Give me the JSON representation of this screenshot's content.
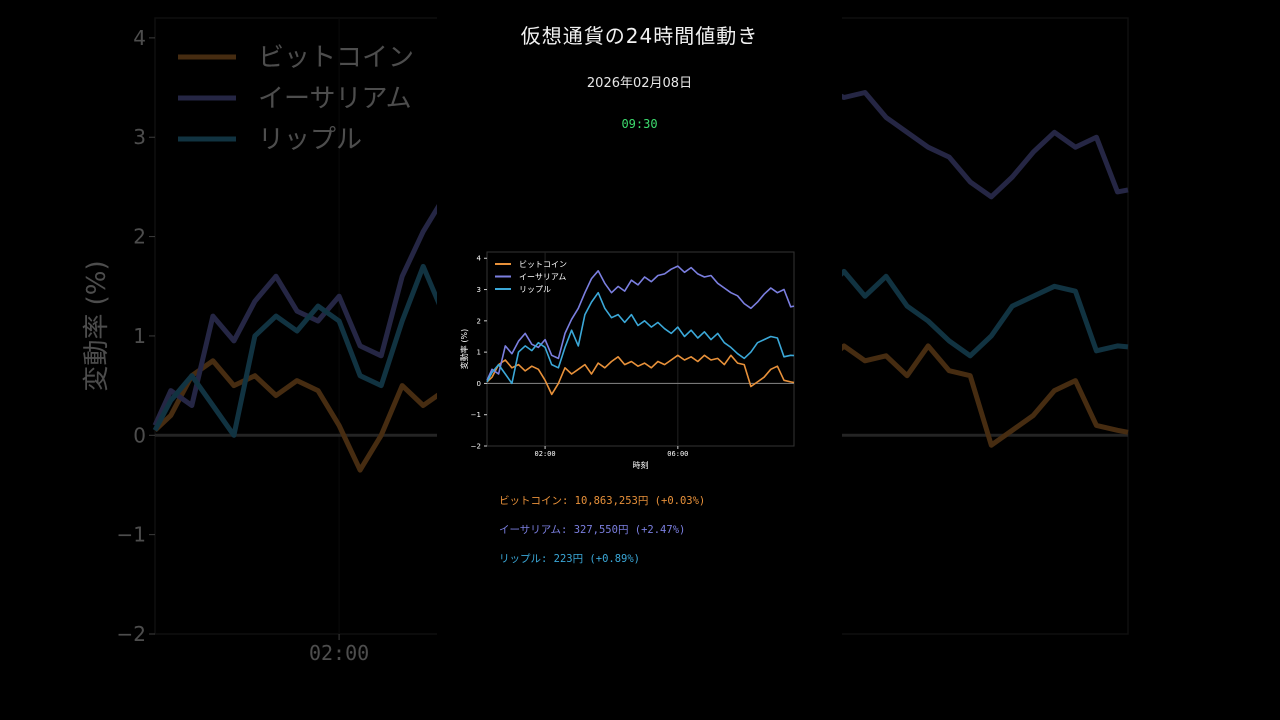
{
  "title": "仮想通貨の24時間値動き",
  "date": "2026年02月08日",
  "time": "09:30",
  "colors": {
    "background": "#000000",
    "bitcoin": "#e8913a",
    "ethereum": "#7b7fe0",
    "ripple": "#3ba8d8",
    "time": "#3ddc6e"
  },
  "stats": [
    {
      "text": "ビットコイン: 10,863,253円 (+0.03%)",
      "color": "#e8913a"
    },
    {
      "text": "イーサリアム: 327,550円 (+2.47%)",
      "color": "#7b7fe0"
    },
    {
      "text": "リップル: 223円 (+0.89%)",
      "color": "#3ba8d8"
    }
  ],
  "chart_data": {
    "type": "line",
    "xlabel": "時刻",
    "ylabel": "変動率 (%)",
    "ylim": [
      -2,
      4.2
    ],
    "yticks": [
      -2,
      -1,
      0,
      1,
      2,
      3,
      4
    ],
    "xlim": [
      0.25,
      9.5
    ],
    "xticks": [
      {
        "x": 2,
        "label": "02:00"
      },
      {
        "x": 6,
        "label": "06:00"
      }
    ],
    "legend": "top-left",
    "series": [
      {
        "name": "ビットコイン",
        "color": "#e8913a",
        "x": [
          0.25,
          0.4,
          0.6,
          0.8,
          1,
          1.2,
          1.4,
          1.6,
          1.8,
          2,
          2.2,
          2.4,
          2.6,
          2.8,
          3,
          3.2,
          3.4,
          3.6,
          3.8,
          4,
          4.2,
          4.4,
          4.6,
          4.8,
          5,
          5.2,
          5.4,
          5.6,
          5.8,
          6,
          6.2,
          6.4,
          6.6,
          6.8,
          7,
          7.2,
          7.4,
          7.6,
          7.8,
          8,
          8.2,
          8.4,
          8.6,
          8.8,
          9,
          9.2,
          9.4,
          9.5
        ],
        "values": [
          0.05,
          0.2,
          0.6,
          0.75,
          0.5,
          0.6,
          0.4,
          0.55,
          0.45,
          0.1,
          -0.35,
          0.0,
          0.5,
          0.3,
          0.45,
          0.6,
          0.3,
          0.65,
          0.5,
          0.7,
          0.85,
          0.6,
          0.7,
          0.55,
          0.65,
          0.5,
          0.7,
          0.6,
          0.75,
          0.9,
          0.75,
          0.85,
          0.7,
          0.9,
          0.75,
          0.8,
          0.6,
          0.9,
          0.65,
          0.6,
          -0.1,
          0.05,
          0.2,
          0.45,
          0.55,
          0.1,
          0.05,
          0.03
        ]
      },
      {
        "name": "イーサリアム",
        "color": "#7b7fe0",
        "x": [
          0.25,
          0.4,
          0.6,
          0.8,
          1,
          1.2,
          1.4,
          1.6,
          1.8,
          2,
          2.2,
          2.4,
          2.6,
          2.8,
          3,
          3.2,
          3.4,
          3.6,
          3.8,
          4,
          4.2,
          4.4,
          4.6,
          4.8,
          5,
          5.2,
          5.4,
          5.6,
          5.8,
          6,
          6.2,
          6.4,
          6.6,
          6.8,
          7,
          7.2,
          7.4,
          7.6,
          7.8,
          8,
          8.2,
          8.4,
          8.6,
          8.8,
          9,
          9.2,
          9.4,
          9.5
        ],
        "values": [
          0.1,
          0.45,
          0.3,
          1.2,
          0.95,
          1.35,
          1.6,
          1.25,
          1.15,
          1.4,
          0.9,
          0.8,
          1.6,
          2.05,
          2.4,
          2.9,
          3.35,
          3.6,
          3.2,
          2.9,
          3.1,
          2.95,
          3.3,
          3.15,
          3.4,
          3.25,
          3.45,
          3.5,
          3.65,
          3.75,
          3.55,
          3.7,
          3.5,
          3.4,
          3.45,
          3.2,
          3.05,
          2.9,
          2.8,
          2.55,
          2.4,
          2.6,
          2.85,
          3.05,
          2.9,
          3.0,
          2.45,
          2.47
        ]
      },
      {
        "name": "リップル",
        "color": "#3ba8d8",
        "x": [
          0.25,
          0.4,
          0.6,
          0.8,
          1,
          1.2,
          1.4,
          1.6,
          1.8,
          2,
          2.2,
          2.4,
          2.6,
          2.8,
          3,
          3.2,
          3.4,
          3.6,
          3.8,
          4,
          4.2,
          4.4,
          4.6,
          4.8,
          5,
          5.2,
          5.4,
          5.6,
          5.8,
          6,
          6.2,
          6.4,
          6.6,
          6.8,
          7,
          7.2,
          7.4,
          7.6,
          7.8,
          8,
          8.2,
          8.4,
          8.6,
          8.8,
          9,
          9.2,
          9.4,
          9.5
        ],
        "values": [
          0.05,
          0.35,
          0.6,
          0.3,
          0.0,
          1.0,
          1.2,
          1.05,
          1.3,
          1.15,
          0.6,
          0.5,
          1.15,
          1.7,
          1.2,
          2.2,
          2.6,
          2.9,
          2.4,
          2.1,
          2.2,
          1.95,
          2.2,
          1.85,
          2.0,
          1.8,
          1.95,
          1.75,
          1.6,
          1.8,
          1.5,
          1.7,
          1.45,
          1.65,
          1.4,
          1.6,
          1.3,
          1.15,
          0.95,
          0.8,
          1.0,
          1.3,
          1.4,
          1.5,
          1.45,
          0.85,
          0.9,
          0.89
        ]
      }
    ]
  }
}
